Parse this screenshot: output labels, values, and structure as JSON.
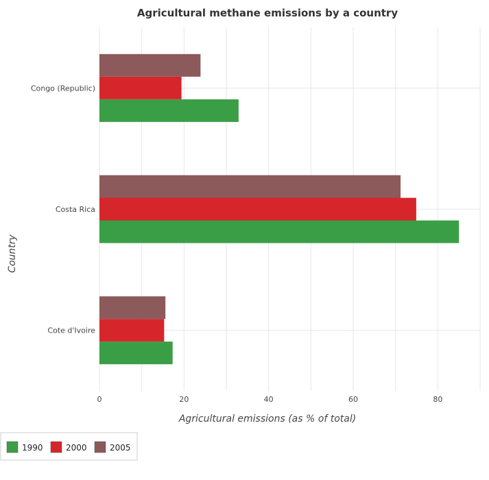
{
  "chart_data": {
    "type": "bar",
    "orientation": "horizontal",
    "title": "Agricultural methane emissions by a country",
    "xlabel": "Agricultural emissions (as % of total)",
    "ylabel": "Country",
    "categories": [
      "Congo (Republic)",
      "Costa Rica",
      "Cote d'Ivoire"
    ],
    "series": [
      {
        "name": "1990",
        "color": "#3a9e46",
        "values": [
          32.9,
          85.0,
          17.3
        ]
      },
      {
        "name": "2000",
        "color": "#d6262b",
        "values": [
          19.4,
          74.9,
          15.3
        ]
      },
      {
        "name": "2005",
        "color": "#8c5a5a",
        "values": [
          23.9,
          71.2,
          15.6
        ]
      }
    ],
    "xlim": [
      0,
      90
    ],
    "xticks": [
      0,
      20,
      40,
      60,
      80
    ],
    "grid": true,
    "legend": "bottom-left"
  }
}
